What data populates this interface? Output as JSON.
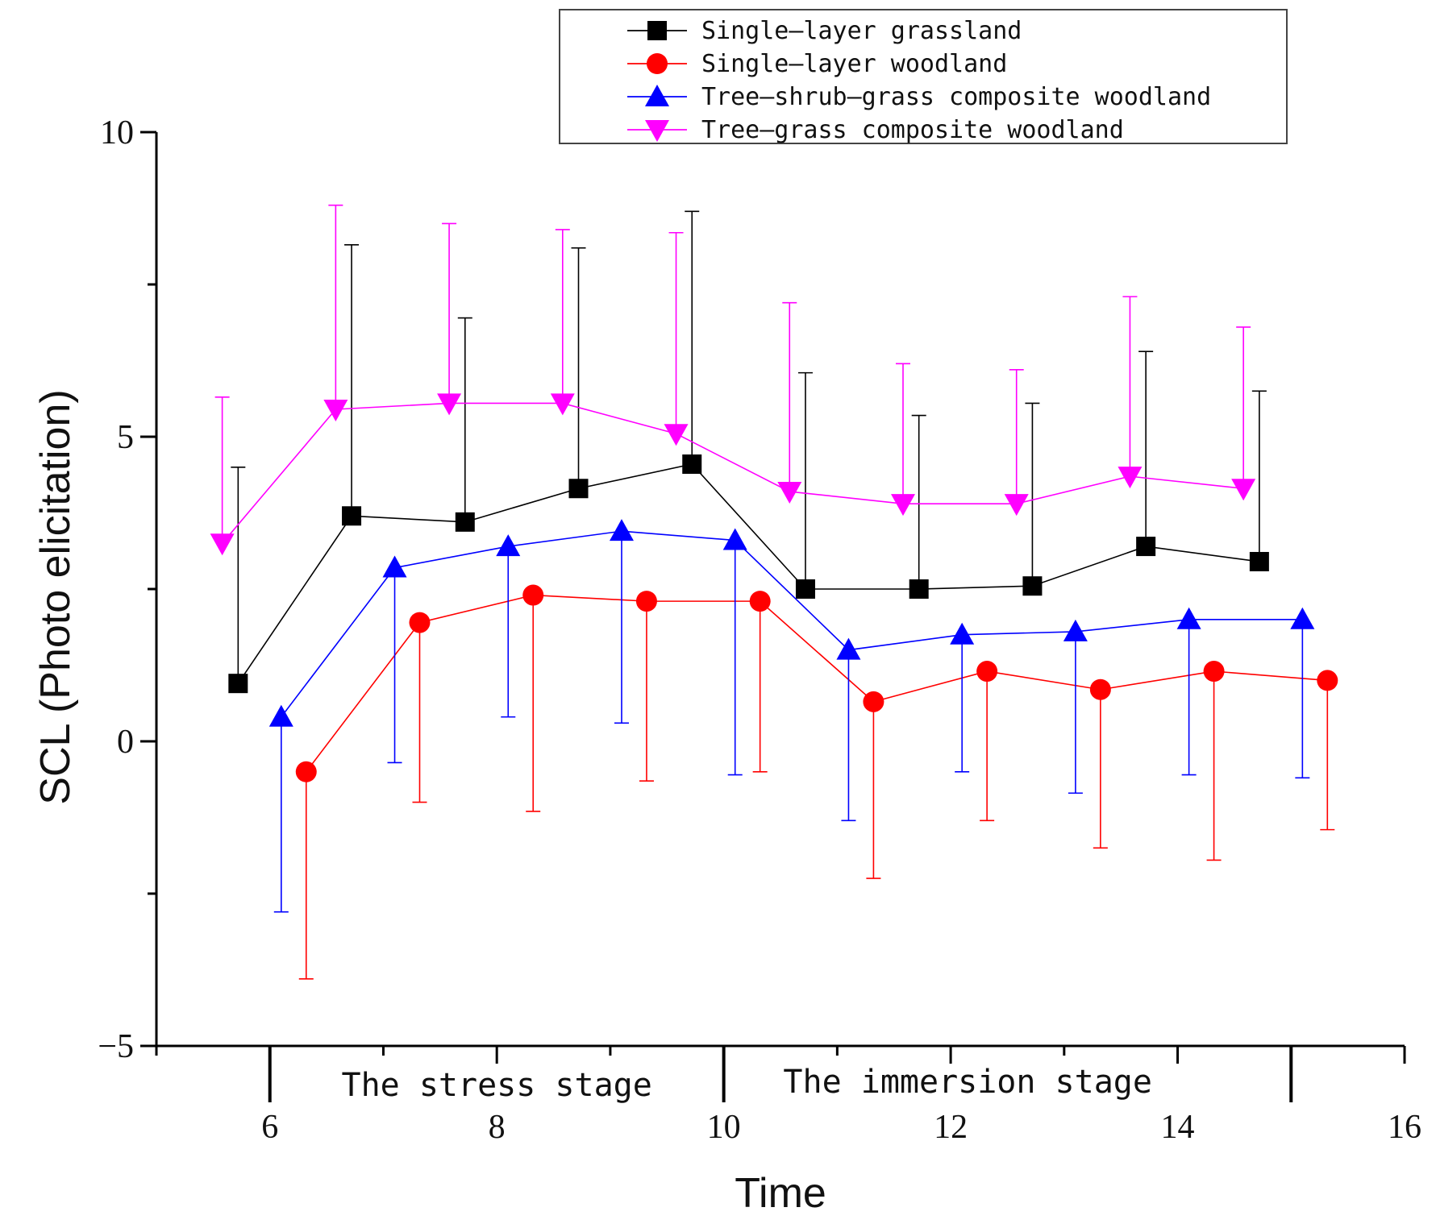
{
  "chart_data": {
    "type": "line",
    "title": "",
    "xlabel": "Time",
    "ylabel": "SCL (Photo elicitation)",
    "xlim": [
      5,
      16
    ],
    "ylim": [
      -5,
      10
    ],
    "xticks": [
      6,
      8,
      10,
      12,
      14,
      16
    ],
    "yticks": [
      -5,
      0,
      5,
      10
    ],
    "tick_labels": {
      "x": [
        "6",
        "8",
        "10",
        "12",
        "14",
        "16"
      ],
      "y": [
        "−5",
        "0",
        "5",
        "10"
      ]
    },
    "stage_annotations": [
      "The stress stage",
      "The immersion stage"
    ],
    "legend_position": "top",
    "error_bars": "upper for Single-layer grassland and Tree-grass composite woodland; lower for Single-layer woodland and Tree-shrub-grass composite woodland",
    "series": [
      {
        "name": "Single—layer grassland",
        "marker": "square",
        "color": "#000000",
        "x": [
          5.72,
          6.72,
          7.72,
          8.72,
          9.72,
          10.72,
          11.72,
          12.72,
          13.72,
          14.72
        ],
        "y": [
          0.95,
          3.7,
          3.6,
          4.15,
          4.55,
          2.5,
          2.5,
          2.55,
          3.2,
          2.95
        ],
        "error_upper": [
          4.5,
          8.15,
          6.95,
          8.1,
          8.7,
          6.05,
          5.35,
          5.55,
          6.4,
          5.75
        ]
      },
      {
        "name": "Single—layer woodland",
        "marker": "circle",
        "color": "#ff0000",
        "x": [
          6.32,
          7.32,
          8.32,
          9.32,
          10.32,
          11.32,
          12.32,
          13.32,
          14.32,
          15.32
        ],
        "y": [
          -0.5,
          1.95,
          2.4,
          2.3,
          2.3,
          0.65,
          1.15,
          0.85,
          1.15,
          1.0
        ],
        "error_lower": [
          -3.9,
          -1.0,
          -1.15,
          -0.65,
          -0.5,
          -2.25,
          -1.3,
          -1.75,
          -1.95,
          -1.45
        ]
      },
      {
        "name": "Tree—shrub—grass composite woodland",
        "marker": "triangle-up",
        "color": "#0000ff",
        "x": [
          6.1,
          7.1,
          8.1,
          9.1,
          10.1,
          11.1,
          12.1,
          13.1,
          14.1,
          15.1
        ],
        "y": [
          0.4,
          2.85,
          3.2,
          3.45,
          3.3,
          1.5,
          1.75,
          1.8,
          2.0,
          2.0
        ],
        "error_lower": [
          -2.8,
          -0.35,
          0.4,
          0.3,
          -0.55,
          -1.3,
          -0.5,
          -0.85,
          -0.55,
          -0.6
        ]
      },
      {
        "name": "Tree—grass composite woodland",
        "marker": "triangle-down",
        "color": "#ff00ff",
        "x": [
          5.58,
          6.58,
          7.58,
          8.58,
          9.58,
          10.58,
          11.58,
          12.58,
          13.58,
          14.58
        ],
        "y": [
          3.25,
          5.45,
          5.55,
          5.55,
          5.05,
          4.1,
          3.9,
          3.9,
          4.35,
          4.15
        ],
        "error_upper": [
          5.65,
          8.8,
          8.5,
          8.4,
          8.35,
          7.2,
          6.2,
          6.1,
          7.3,
          6.8
        ]
      }
    ]
  }
}
